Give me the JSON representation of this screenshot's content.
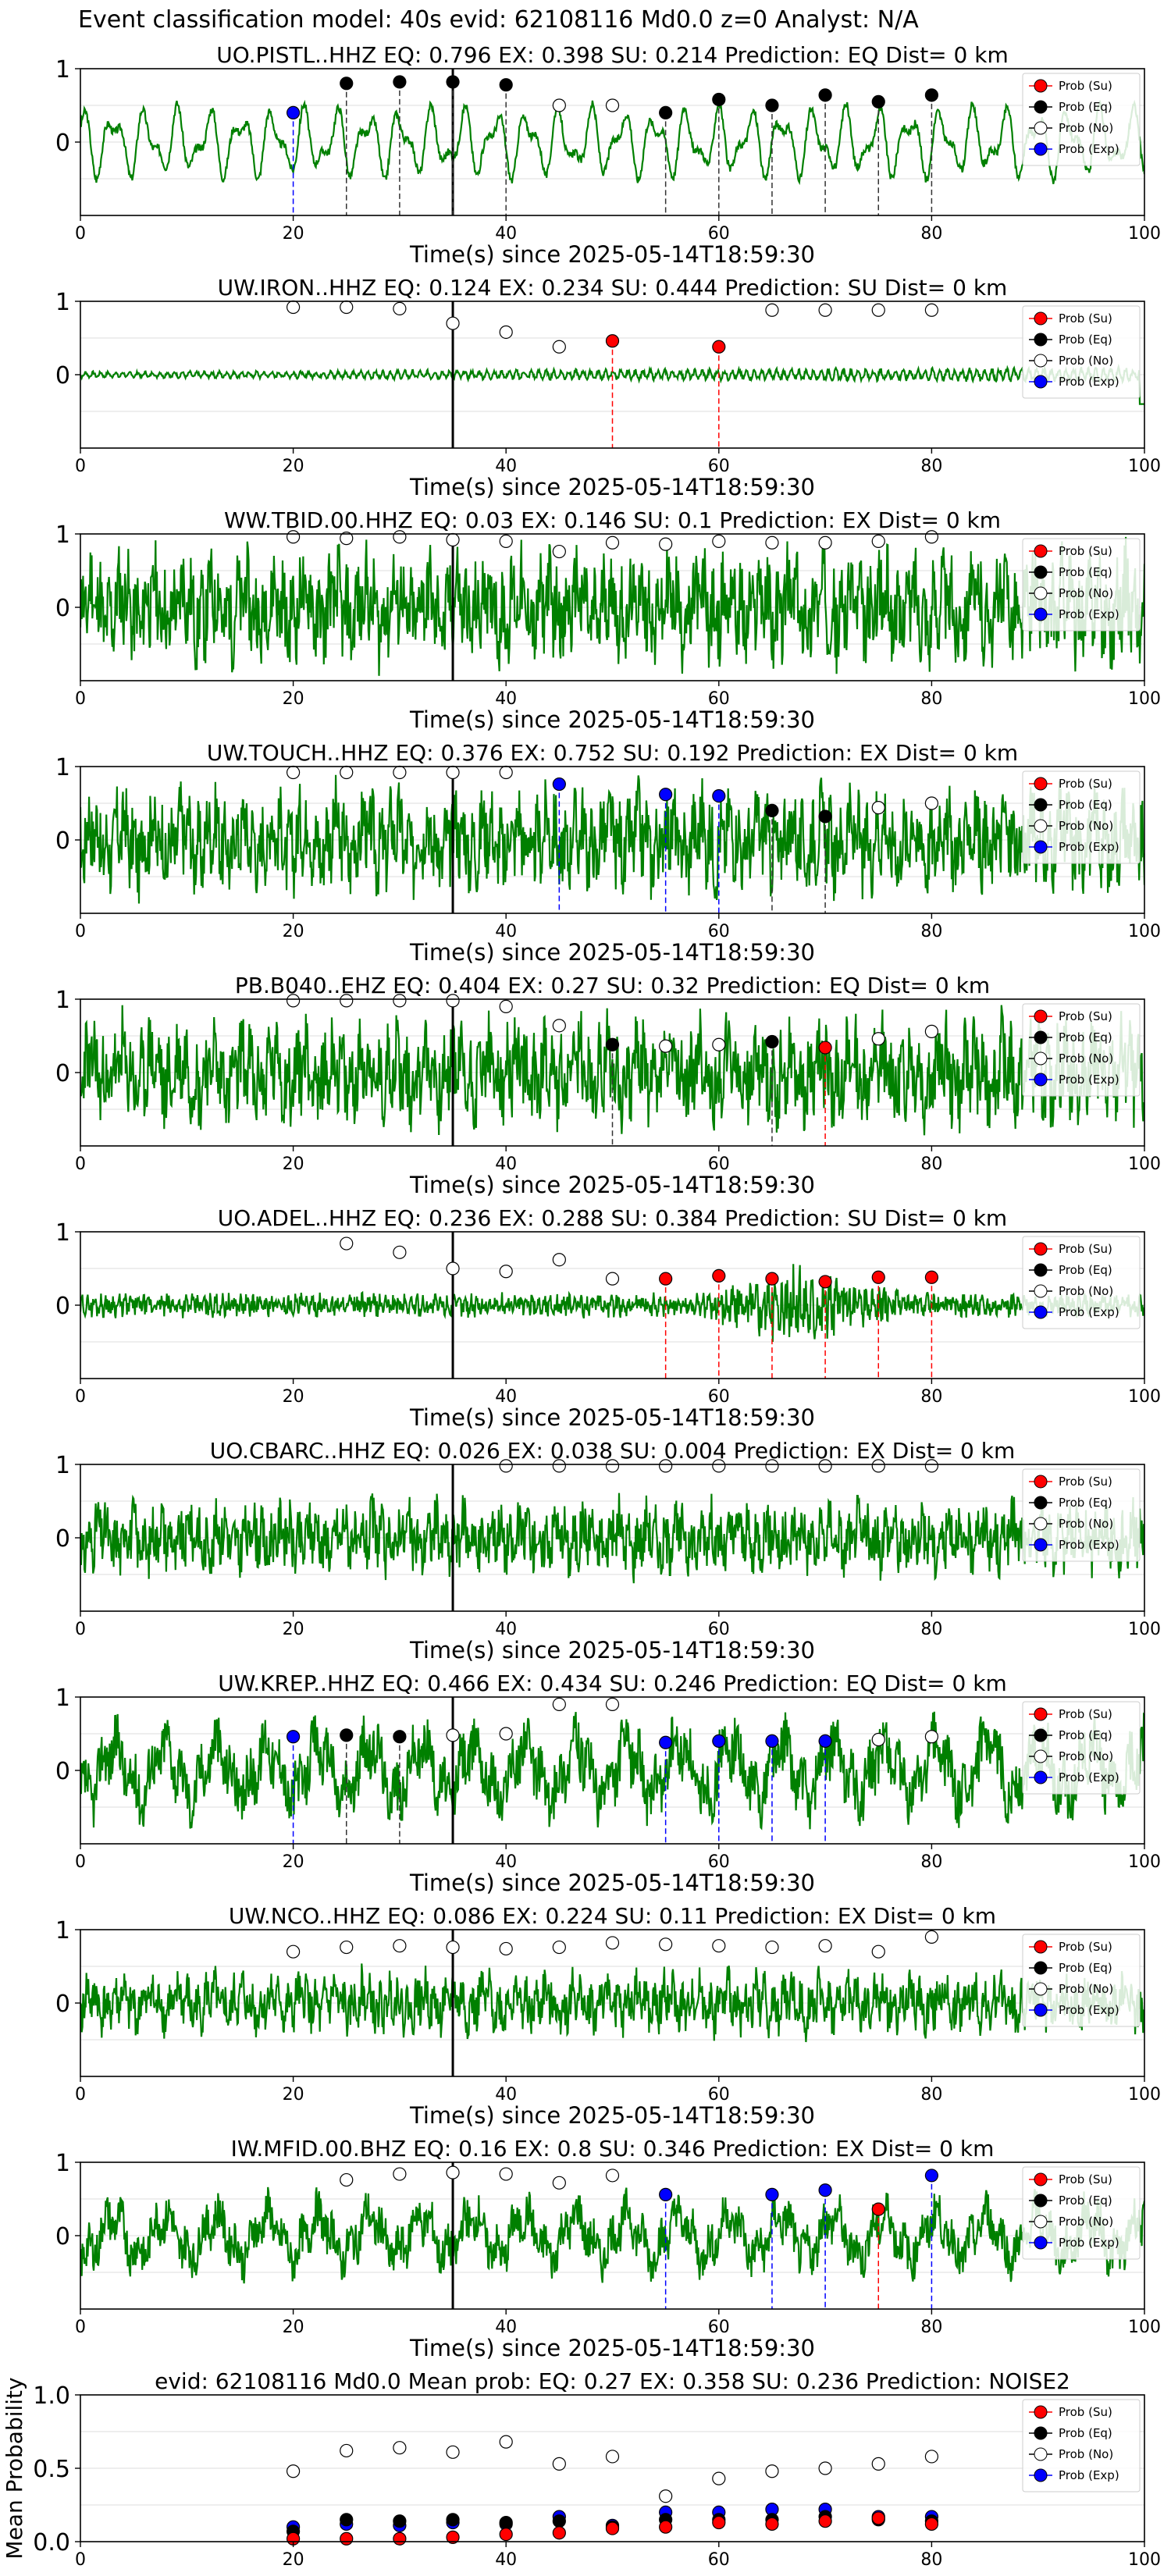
{
  "page": {
    "suptitle": "Event classification model: 40s evid: 62108116 Md0.0 z=0 Analyst: N/A"
  },
  "colors": {
    "waveform": "#008000",
    "su": "#ff0000",
    "eq": "#000000",
    "no": "#ffffff",
    "exp": "#0000ff",
    "pick_line": "#000000"
  },
  "legend": {
    "entries": [
      {
        "label": "Prob (Su)",
        "key": "su"
      },
      {
        "label": "Prob (Eq)",
        "key": "eq"
      },
      {
        "label": "Prob (No)",
        "key": "no"
      },
      {
        "label": "Prob (Exp)",
        "key": "exp"
      }
    ]
  },
  "chart_data": [
    {
      "type": "line",
      "title": "UO.PISTL..HHZ   EQ: 0.796  EX: 0.398  SU: 0.214   Prediction: EQ    Dist= 0 km",
      "xlabel": "Time(s) since 2025-05-14T18:59:30",
      "xlim": [
        0,
        100
      ],
      "ylim": [
        -1,
        1
      ],
      "xticks": [
        0,
        20,
        40,
        60,
        80,
        100
      ],
      "yticks": [
        1,
        0
      ],
      "grid": "y",
      "legend_position": "top-right",
      "pick_time": 35,
      "waveform": {
        "style": "low-freq",
        "amplitude": 0.55,
        "seed": 3
      },
      "predictions": [
        {
          "t": 20,
          "prob": 0.4,
          "class": "exp"
        },
        {
          "t": 25,
          "prob": 0.8,
          "class": "eq"
        },
        {
          "t": 30,
          "prob": 0.82,
          "class": "eq"
        },
        {
          "t": 35,
          "prob": 0.82,
          "class": "eq"
        },
        {
          "t": 40,
          "prob": 0.78,
          "class": "eq"
        },
        {
          "t": 45,
          "prob": 0.5,
          "class": "no"
        },
        {
          "t": 50,
          "prob": 0.5,
          "class": "no"
        },
        {
          "t": 55,
          "prob": 0.4,
          "class": "eq"
        },
        {
          "t": 60,
          "prob": 0.58,
          "class": "eq"
        },
        {
          "t": 65,
          "prob": 0.5,
          "class": "eq"
        },
        {
          "t": 70,
          "prob": 0.64,
          "class": "eq"
        },
        {
          "t": 75,
          "prob": 0.55,
          "class": "eq"
        },
        {
          "t": 80,
          "prob": 0.64,
          "class": "eq"
        }
      ]
    },
    {
      "type": "line",
      "title": "UW.IRON..HHZ   EQ: 0.124  EX: 0.234  SU: 0.444   Prediction: SU    Dist= 0 km",
      "xlabel": "Time(s) since 2025-05-14T18:59:30",
      "xlim": [
        0,
        100
      ],
      "ylim": [
        -1,
        1
      ],
      "xticks": [
        0,
        20,
        40,
        60,
        80,
        100
      ],
      "yticks": [
        1,
        0
      ],
      "grid": "y",
      "legend_position": "top-right",
      "pick_time": 35,
      "waveform": {
        "style": "quiet",
        "amplitude": 0.1,
        "seed": 7
      },
      "predictions": [
        {
          "t": 20,
          "prob": 0.92,
          "class": "no"
        },
        {
          "t": 25,
          "prob": 0.92,
          "class": "no"
        },
        {
          "t": 30,
          "prob": 0.9,
          "class": "no"
        },
        {
          "t": 35,
          "prob": 0.7,
          "class": "no"
        },
        {
          "t": 40,
          "prob": 0.58,
          "class": "no"
        },
        {
          "t": 45,
          "prob": 0.38,
          "class": "no"
        },
        {
          "t": 50,
          "prob": 0.46,
          "class": "su"
        },
        {
          "t": 60,
          "prob": 0.38,
          "class": "su"
        },
        {
          "t": 65,
          "prob": 0.88,
          "class": "no"
        },
        {
          "t": 70,
          "prob": 0.88,
          "class": "no"
        },
        {
          "t": 75,
          "prob": 0.88,
          "class": "no"
        },
        {
          "t": 80,
          "prob": 0.88,
          "class": "no"
        }
      ]
    },
    {
      "type": "line",
      "title": "WW.TBID.00.HHZ   EQ: 0.03  EX: 0.146  SU: 0.1   Prediction: EX    Dist= 0 km",
      "xlabel": "Time(s) since 2025-05-14T18:59:30",
      "xlim": [
        0,
        100
      ],
      "ylim": [
        -1,
        1
      ],
      "xticks": [
        0,
        20,
        40,
        60,
        80,
        100
      ],
      "yticks": [
        1,
        0
      ],
      "grid": "y",
      "legend_position": "top-right",
      "pick_time": 35,
      "waveform": {
        "style": "noisy",
        "amplitude": 0.75,
        "seed": 11
      },
      "predictions": [
        {
          "t": 20,
          "prob": 0.96,
          "class": "no"
        },
        {
          "t": 25,
          "prob": 0.94,
          "class": "no"
        },
        {
          "t": 30,
          "prob": 0.96,
          "class": "no"
        },
        {
          "t": 35,
          "prob": 0.92,
          "class": "no"
        },
        {
          "t": 40,
          "prob": 0.9,
          "class": "no"
        },
        {
          "t": 45,
          "prob": 0.76,
          "class": "no"
        },
        {
          "t": 50,
          "prob": 0.88,
          "class": "no"
        },
        {
          "t": 55,
          "prob": 0.86,
          "class": "no"
        },
        {
          "t": 60,
          "prob": 0.9,
          "class": "no"
        },
        {
          "t": 65,
          "prob": 0.88,
          "class": "no"
        },
        {
          "t": 70,
          "prob": 0.88,
          "class": "no"
        },
        {
          "t": 75,
          "prob": 0.9,
          "class": "no"
        },
        {
          "t": 80,
          "prob": 0.96,
          "class": "no"
        }
      ]
    },
    {
      "type": "line",
      "title": "UW.TOUCH..HHZ   EQ: 0.376  EX: 0.752  SU: 0.192   Prediction: EX    Dist= 0 km",
      "xlabel": "Time(s) since 2025-05-14T18:59:30",
      "xlim": [
        0,
        100
      ],
      "ylim": [
        -1,
        1
      ],
      "xticks": [
        0,
        20,
        40,
        60,
        80,
        100
      ],
      "yticks": [
        1,
        0
      ],
      "grid": "y",
      "legend_position": "top-right",
      "pick_time": 35,
      "waveform": {
        "style": "noisy",
        "amplitude": 0.7,
        "seed": 17
      },
      "predictions": [
        {
          "t": 20,
          "prob": 0.92,
          "class": "no"
        },
        {
          "t": 25,
          "prob": 0.92,
          "class": "no"
        },
        {
          "t": 30,
          "prob": 0.92,
          "class": "no"
        },
        {
          "t": 35,
          "prob": 0.92,
          "class": "no"
        },
        {
          "t": 40,
          "prob": 0.92,
          "class": "no"
        },
        {
          "t": 45,
          "prob": 0.76,
          "class": "exp"
        },
        {
          "t": 55,
          "prob": 0.62,
          "class": "exp"
        },
        {
          "t": 60,
          "prob": 0.6,
          "class": "exp"
        },
        {
          "t": 65,
          "prob": 0.4,
          "class": "eq"
        },
        {
          "t": 70,
          "prob": 0.32,
          "class": "eq"
        },
        {
          "t": 75,
          "prob": 0.44,
          "class": "no"
        },
        {
          "t": 80,
          "prob": 0.5,
          "class": "no"
        }
      ]
    },
    {
      "type": "line",
      "title": "PB.B040..EHZ   EQ: 0.404  EX: 0.27  SU: 0.32   Prediction: EQ    Dist= 0 km",
      "xlabel": "Time(s) since 2025-05-14T18:59:30",
      "xlim": [
        0,
        100
      ],
      "ylim": [
        -1,
        1
      ],
      "xticks": [
        0,
        20,
        40,
        60,
        80,
        100
      ],
      "yticks": [
        1,
        0
      ],
      "grid": "y",
      "legend_position": "top-right",
      "pick_time": 35,
      "waveform": {
        "style": "noisy",
        "amplitude": 0.72,
        "seed": 23
      },
      "predictions": [
        {
          "t": 20,
          "prob": 0.98,
          "class": "no"
        },
        {
          "t": 25,
          "prob": 0.98,
          "class": "no"
        },
        {
          "t": 30,
          "prob": 0.98,
          "class": "no"
        },
        {
          "t": 35,
          "prob": 0.98,
          "class": "no"
        },
        {
          "t": 40,
          "prob": 0.9,
          "class": "no"
        },
        {
          "t": 45,
          "prob": 0.64,
          "class": "no"
        },
        {
          "t": 50,
          "prob": 0.38,
          "class": "eq"
        },
        {
          "t": 55,
          "prob": 0.36,
          "class": "no"
        },
        {
          "t": 60,
          "prob": 0.38,
          "class": "no"
        },
        {
          "t": 65,
          "prob": 0.42,
          "class": "eq"
        },
        {
          "t": 70,
          "prob": 0.34,
          "class": "su"
        },
        {
          "t": 75,
          "prob": 0.46,
          "class": "no"
        },
        {
          "t": 80,
          "prob": 0.56,
          "class": "no"
        }
      ]
    },
    {
      "type": "line",
      "title": "UO.ADEL..HHZ   EQ: 0.236  EX: 0.288  SU: 0.384   Prediction: SU    Dist= 0 km",
      "xlabel": "Time(s) since 2025-05-14T18:59:30",
      "xlim": [
        0,
        100
      ],
      "ylim": [
        -1,
        1
      ],
      "xticks": [
        0,
        20,
        40,
        60,
        80,
        100
      ],
      "yticks": [
        1,
        0
      ],
      "grid": "y",
      "legend_position": "top-right",
      "pick_time": 35,
      "waveform": {
        "style": "burst",
        "amplitude": 0.2,
        "seed": 29
      },
      "predictions": [
        {
          "t": 25,
          "prob": 0.84,
          "class": "no"
        },
        {
          "t": 30,
          "prob": 0.72,
          "class": "no"
        },
        {
          "t": 35,
          "prob": 0.5,
          "class": "no"
        },
        {
          "t": 40,
          "prob": 0.46,
          "class": "no"
        },
        {
          "t": 45,
          "prob": 0.62,
          "class": "no"
        },
        {
          "t": 50,
          "prob": 0.36,
          "class": "no"
        },
        {
          "t": 55,
          "prob": 0.36,
          "class": "su"
        },
        {
          "t": 60,
          "prob": 0.4,
          "class": "su"
        },
        {
          "t": 65,
          "prob": 0.36,
          "class": "su"
        },
        {
          "t": 70,
          "prob": 0.32,
          "class": "su"
        },
        {
          "t": 75,
          "prob": 0.38,
          "class": "su"
        },
        {
          "t": 80,
          "prob": 0.38,
          "class": "su"
        }
      ]
    },
    {
      "type": "line",
      "title": "UO.CBARC..HHZ   EQ: 0.026  EX: 0.038  SU: 0.004   Prediction: EX    Dist= 0 km",
      "xlabel": "Time(s) since 2025-05-14T18:59:30",
      "xlim": [
        0,
        100
      ],
      "ylim": [
        -1,
        1
      ],
      "xticks": [
        0,
        20,
        40,
        60,
        80,
        100
      ],
      "yticks": [
        1,
        0
      ],
      "grid": "y",
      "legend_position": "top-right",
      "pick_time": 35,
      "waveform": {
        "style": "noisy",
        "amplitude": 0.5,
        "seed": 31
      },
      "predictions": [
        {
          "t": 40,
          "prob": 0.98,
          "class": "no"
        },
        {
          "t": 45,
          "prob": 0.98,
          "class": "no"
        },
        {
          "t": 50,
          "prob": 0.98,
          "class": "no"
        },
        {
          "t": 55,
          "prob": 0.98,
          "class": "no"
        },
        {
          "t": 60,
          "prob": 0.98,
          "class": "no"
        },
        {
          "t": 65,
          "prob": 0.98,
          "class": "no"
        },
        {
          "t": 70,
          "prob": 0.98,
          "class": "no"
        },
        {
          "t": 75,
          "prob": 0.98,
          "class": "no"
        },
        {
          "t": 80,
          "prob": 0.98,
          "class": "no"
        }
      ]
    },
    {
      "type": "line",
      "title": "UW.KREP..HHZ   EQ: 0.466  EX: 0.434  SU: 0.246   Prediction: EQ    Dist= 0 km",
      "xlabel": "Time(s) since 2025-05-14T18:59:30",
      "xlim": [
        0,
        100
      ],
      "ylim": [
        -1,
        1
      ],
      "xticks": [
        0,
        20,
        40,
        60,
        80,
        100
      ],
      "yticks": [
        1,
        0
      ],
      "grid": "y",
      "legend_position": "top-right",
      "pick_time": 35,
      "waveform": {
        "style": "mixed",
        "amplitude": 0.65,
        "seed": 37
      },
      "predictions": [
        {
          "t": 20,
          "prob": 0.46,
          "class": "exp"
        },
        {
          "t": 25,
          "prob": 0.48,
          "class": "eq"
        },
        {
          "t": 30,
          "prob": 0.46,
          "class": "eq"
        },
        {
          "t": 35,
          "prob": 0.48,
          "class": "no"
        },
        {
          "t": 40,
          "prob": 0.5,
          "class": "no"
        },
        {
          "t": 45,
          "prob": 0.9,
          "class": "no"
        },
        {
          "t": 50,
          "prob": 0.9,
          "class": "no"
        },
        {
          "t": 55,
          "prob": 0.38,
          "class": "exp"
        },
        {
          "t": 60,
          "prob": 0.4,
          "class": "exp"
        },
        {
          "t": 65,
          "prob": 0.4,
          "class": "exp"
        },
        {
          "t": 70,
          "prob": 0.4,
          "class": "exp"
        },
        {
          "t": 75,
          "prob": 0.42,
          "class": "no"
        },
        {
          "t": 80,
          "prob": 0.46,
          "class": "no"
        }
      ]
    },
    {
      "type": "line",
      "title": "UW.NCO..HHZ   EQ: 0.086  EX: 0.224  SU: 0.11   Prediction: EX    Dist= 0 km",
      "xlabel": "Time(s) since 2025-05-14T18:59:30",
      "xlim": [
        0,
        100
      ],
      "ylim": [
        -1,
        1
      ],
      "xticks": [
        0,
        20,
        40,
        60,
        80,
        100
      ],
      "yticks": [
        1,
        0
      ],
      "grid": "y",
      "legend_position": "top-right",
      "pick_time": 35,
      "waveform": {
        "style": "noisy",
        "amplitude": 0.42,
        "seed": 41
      },
      "predictions": [
        {
          "t": 20,
          "prob": 0.7,
          "class": "no"
        },
        {
          "t": 25,
          "prob": 0.76,
          "class": "no"
        },
        {
          "t": 30,
          "prob": 0.78,
          "class": "no"
        },
        {
          "t": 35,
          "prob": 0.76,
          "class": "no"
        },
        {
          "t": 40,
          "prob": 0.74,
          "class": "no"
        },
        {
          "t": 45,
          "prob": 0.76,
          "class": "no"
        },
        {
          "t": 50,
          "prob": 0.82,
          "class": "no"
        },
        {
          "t": 55,
          "prob": 0.8,
          "class": "no"
        },
        {
          "t": 60,
          "prob": 0.78,
          "class": "no"
        },
        {
          "t": 65,
          "prob": 0.76,
          "class": "no"
        },
        {
          "t": 70,
          "prob": 0.78,
          "class": "no"
        },
        {
          "t": 75,
          "prob": 0.7,
          "class": "no"
        },
        {
          "t": 80,
          "prob": 0.9,
          "class": "no"
        }
      ]
    },
    {
      "type": "line",
      "title": "IW.MFID.00.BHZ   EQ: 0.16  EX: 0.8  SU: 0.346   Prediction: EX    Dist= 0 km",
      "xlabel": "Time(s) since 2025-05-14T18:59:30",
      "xlim": [
        0,
        100
      ],
      "ylim": [
        -1,
        1
      ],
      "xticks": [
        0,
        20,
        40,
        60,
        80,
        100
      ],
      "yticks": [
        1,
        0
      ],
      "grid": "y",
      "legend_position": "top-right",
      "pick_time": 35,
      "waveform": {
        "style": "mixed",
        "amplitude": 0.5,
        "seed": 43
      },
      "predictions": [
        {
          "t": 25,
          "prob": 0.76,
          "class": "no"
        },
        {
          "t": 30,
          "prob": 0.84,
          "class": "no"
        },
        {
          "t": 35,
          "prob": 0.86,
          "class": "no"
        },
        {
          "t": 40,
          "prob": 0.84,
          "class": "no"
        },
        {
          "t": 45,
          "prob": 0.72,
          "class": "no"
        },
        {
          "t": 50,
          "prob": 0.82,
          "class": "no"
        },
        {
          "t": 55,
          "prob": 0.56,
          "class": "exp"
        },
        {
          "t": 65,
          "prob": 0.56,
          "class": "exp"
        },
        {
          "t": 70,
          "prob": 0.62,
          "class": "exp"
        },
        {
          "t": 75,
          "prob": 0.36,
          "class": "su"
        },
        {
          "t": 80,
          "prob": 0.82,
          "class": "exp"
        }
      ]
    },
    {
      "type": "scatter",
      "title": "evid: 62108116  Md0.0   Mean prob:   EQ: 0.27  EX: 0.358  SU: 0.236   Prediction: NOISE2",
      "xlabel": "",
      "ylabel": "Mean Probability",
      "xlim": [
        0,
        100
      ],
      "ylim": [
        0,
        1
      ],
      "xticks": [
        0,
        20,
        40,
        60,
        80,
        100
      ],
      "yticks": [
        0.0,
        0.5,
        1.0
      ],
      "ytick_labels": [
        "0.0",
        "0.5",
        "1.0"
      ],
      "grid": "y",
      "legend_position": "top-right",
      "x": [
        20,
        25,
        30,
        35,
        40,
        45,
        50,
        55,
        60,
        65,
        70,
        75,
        80
      ],
      "series": [
        {
          "key": "no",
          "values": [
            0.48,
            0.62,
            0.64,
            0.61,
            0.68,
            0.53,
            0.58,
            0.31,
            0.43,
            0.48,
            0.5,
            0.53,
            0.58
          ]
        },
        {
          "key": "exp",
          "values": [
            0.1,
            0.12,
            0.11,
            0.13,
            0.12,
            0.17,
            0.11,
            0.2,
            0.2,
            0.22,
            0.22,
            0.17,
            0.17
          ]
        },
        {
          "key": "eq",
          "values": [
            0.07,
            0.15,
            0.14,
            0.15,
            0.13,
            0.14,
            0.1,
            0.15,
            0.15,
            0.15,
            0.17,
            0.15,
            0.14
          ]
        },
        {
          "key": "su",
          "values": [
            0.02,
            0.02,
            0.02,
            0.03,
            0.05,
            0.06,
            0.09,
            0.1,
            0.13,
            0.12,
            0.14,
            0.16,
            0.12
          ]
        }
      ]
    }
  ]
}
